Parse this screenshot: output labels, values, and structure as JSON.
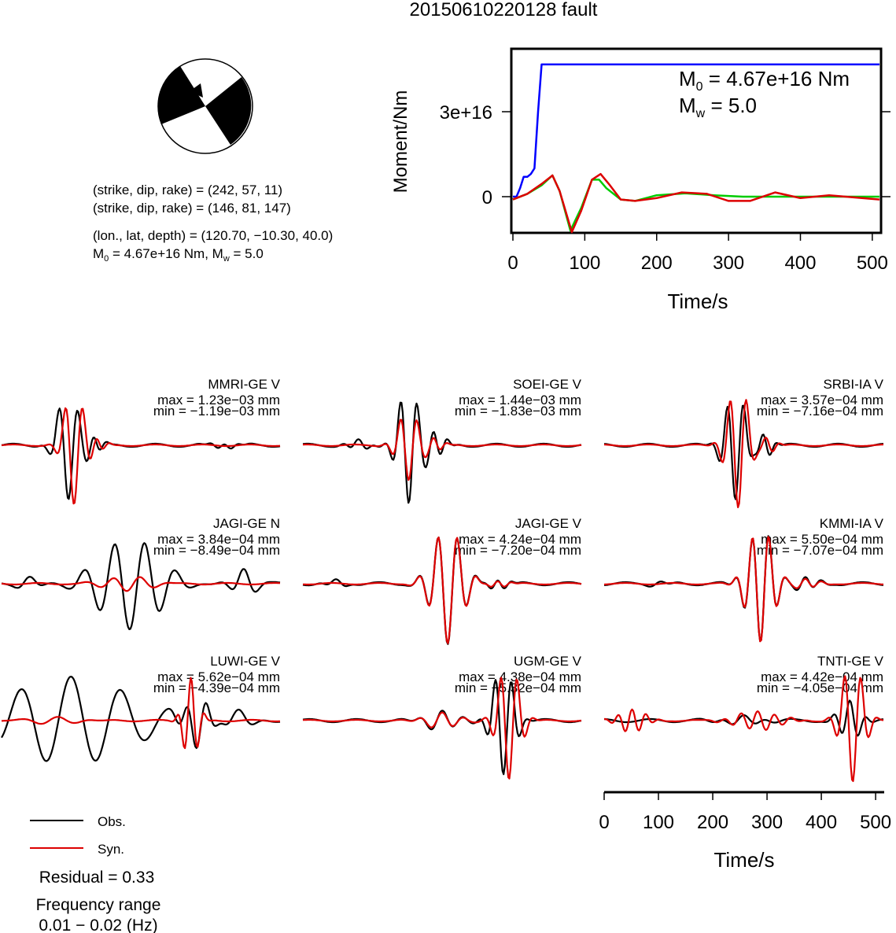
{
  "title": "20150610220128 fault",
  "mechanism": {
    "planes": [
      "(strike, dip, rake) = (242, 57, 11)",
      "(strike, dip, rake) = (146, 81, 147)"
    ],
    "location": "(lon., lat, depth) = (120.70, −10.30, 40.0)",
    "moment_line": {
      "m": "M",
      "m_sub": "0",
      "m_val": " = 4.67e+16 Nm, M",
      "w_sub": "w",
      "w_val": " = 5.0"
    }
  },
  "moment_plot": {
    "ylabel": "Moment/Nm",
    "xlabel": "Time/s",
    "xticks": [
      "0",
      "100",
      "200",
      "300",
      "400",
      "500"
    ],
    "yticks": [
      "0",
      "3e+16"
    ],
    "annot_m0": {
      "m": "M",
      "sub": "0",
      "val": " = 4.67e+16 Nm"
    },
    "annot_mw": {
      "m": "M",
      "sub": "w",
      "val": " = 5.0"
    }
  },
  "chart_data": [
    {
      "type": "line",
      "name": "moment-rate",
      "xlabel": "Time/s",
      "ylabel": "Moment/Nm",
      "xlim": [
        0,
        510
      ],
      "yticks": [
        0,
        3e+16
      ],
      "series": [
        {
          "color": "#0000ff",
          "x": [
            0,
            5,
            10,
            15,
            20,
            25,
            30,
            35,
            40,
            45,
            510
          ],
          "y": [
            0,
            0,
            3000000000000000.0,
            7000000000000000.0,
            7000000000000000.0,
            8000000000000000.0,
            1e+16,
            3e+16,
            4.67e+16,
            4.67e+16,
            4.67e+16
          ]
        },
        {
          "color": "#00cc00",
          "x": [
            0,
            20,
            40,
            55,
            65,
            80,
            95,
            110,
            120,
            130,
            150,
            170,
            200,
            240,
            280,
            320,
            360,
            400,
            450,
            510
          ],
          "y": [
            -1000000000000000.0,
            1000000000000000.0,
            4000000000000000.0,
            7500000000000000.0,
            2000000000000000.0,
            -1.2e+16,
            -4000000000000000.0,
            6000000000000000.0,
            6000000000000000.0,
            3000000000000000.0,
            -1000000000000000.0,
            -1500000000000000.0,
            500000000000000.0,
            1200000000000000.0,
            500000000000000.0,
            0,
            0,
            0,
            0,
            0
          ]
        },
        {
          "color": "#dd0000",
          "x": [
            0,
            20,
            40,
            55,
            65,
            82,
            95,
            110,
            122,
            135,
            150,
            170,
            200,
            235,
            270,
            300,
            330,
            365,
            400,
            440,
            510
          ],
          "y": [
            -1000000000000000.0,
            1000000000000000.0,
            4500000000000000.0,
            7500000000000000.0,
            2000000000000000.0,
            -1.25e+16,
            -5000000000000000.0,
            6000000000000000.0,
            8000000000000000.0,
            4000000000000000.0,
            -1000000000000000.0,
            -1500000000000000.0,
            -500000000000000.0,
            1500000000000000.0,
            1000000000000000.0,
            -1500000000000000.0,
            -1500000000000000.0,
            1500000000000000.0,
            -500000000000000.0,
            500000000000000.0,
            -1000000000000000.0
          ]
        }
      ]
    },
    {
      "type": "line",
      "name": "waveforms",
      "xlabel": "Time/s",
      "xlim": [
        0,
        510
      ],
      "xticks": [
        0,
        100,
        200,
        300,
        400,
        500
      ],
      "traces": [
        {
          "station": "MMRI-GE V",
          "max": "max = 1.23e−03 mm",
          "min": "min = −1.19e−03 mm"
        },
        {
          "station": "SOEI-GE V",
          "max": "max = 1.44e−03 mm",
          "min": "min = −1.83e−03 mm"
        },
        {
          "station": "SRBI-IA V",
          "max": "max = 3.57e−04 mm",
          "min": "min = −7.16e−04 mm"
        },
        {
          "station": "JAGI-GE N",
          "max": "max = 3.84e−04 mm",
          "min": "min = −8.49e−04 mm"
        },
        {
          "station": "JAGI-GE V",
          "max": "max = 4.24e−04 mm",
          "min": "min = −7.20e−04 mm"
        },
        {
          "station": "KMMI-IA V",
          "max": "max = 5.50e−04 mm",
          "min": "min = −7.07e−04 mm"
        },
        {
          "station": "LUWI-GE V",
          "max": "max = 5.62e−04 mm",
          "min": "min = −4.39e−04 mm"
        },
        {
          "station": "UGM-GE V",
          "max": "max = 4.38e−04 mm",
          "min": "min = −5.32e−04 mm"
        },
        {
          "station": "TNTI-GE V",
          "max": "max = 4.42e−04 mm",
          "min": "min = −4.05e−04 mm"
        }
      ]
    }
  ],
  "legend": {
    "obs": "Obs.",
    "syn": "Syn."
  },
  "residual": "Residual = 0.33",
  "freq_label": "Frequency range",
  "freq_value": "0.01 − 0.02 (Hz)",
  "colors": {
    "obs": "#000000",
    "syn": "#dd0000",
    "moment": "#0000ff",
    "green": "#00cc00"
  }
}
